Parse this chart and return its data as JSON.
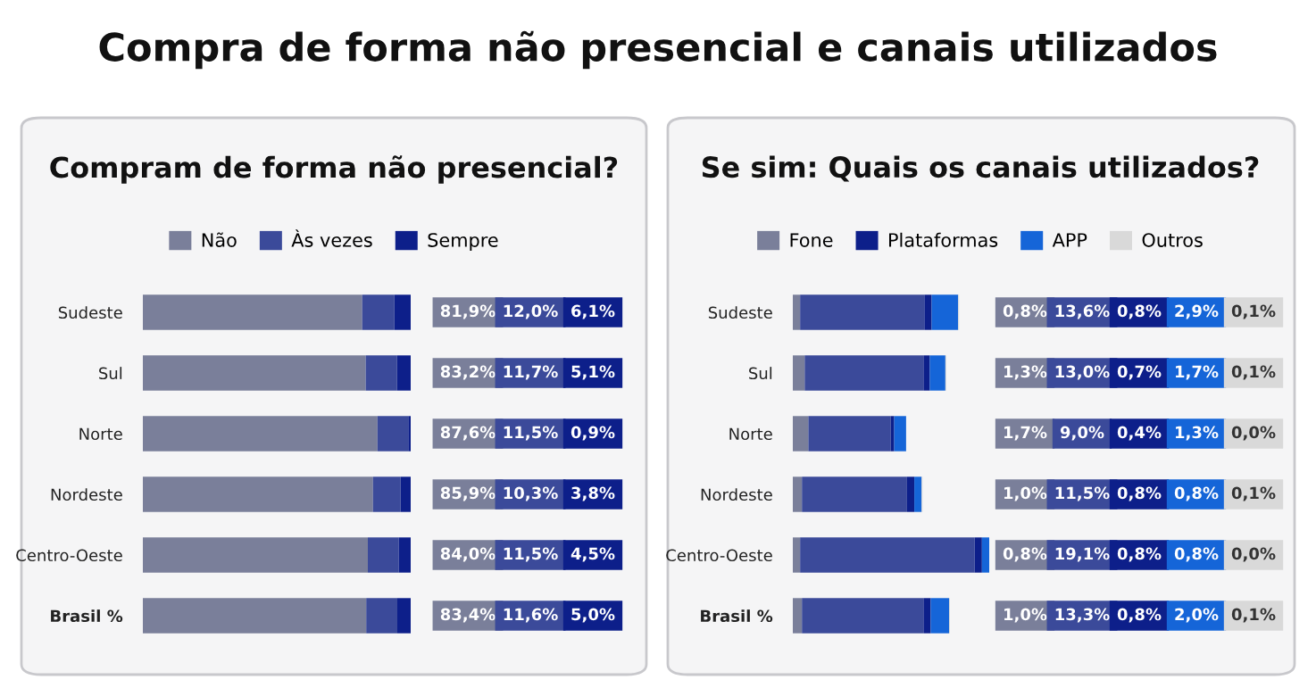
{
  "chart_data": [
    {
      "type": "bar",
      "orientation": "horizontal",
      "stacked": true,
      "title": "Compram de forma não presencial?",
      "annotations": [
        "Compra de forma não presencial e canais utilizados"
      ],
      "legend": "top",
      "tick_labels": "y",
      "categories": [
        "Sudeste",
        "Sul",
        "Norte",
        "Nordeste",
        "Centro-Oeste",
        "Brasil %"
      ],
      "series": [
        {
          "name": "Não",
          "color": "#7a7f9a",
          "values": [
            81.9,
            83.2,
            87.6,
            85.9,
            84.0,
            83.4
          ],
          "value_labels": [
            "81,9%",
            "83,2%",
            "87,6%",
            "85,9%",
            "84,0%",
            "83,4%"
          ]
        },
        {
          "name": "Às vezes",
          "color": "#3b4a9a",
          "values": [
            12.0,
            11.7,
            11.5,
            10.3,
            11.5,
            11.6
          ],
          "value_labels": [
            "12,0%",
            "11,7%",
            "11,5%",
            "10,3%",
            "11,5%",
            "11,6%"
          ]
        },
        {
          "name": "Sempre",
          "color": "#0d1f8a",
          "values": [
            6.1,
            5.1,
            0.9,
            3.8,
            4.5,
            5.0
          ],
          "value_labels": [
            "6,1%",
            "5,1%",
            "0,9%",
            "3,8%",
            "4,5%",
            "5,0%"
          ]
        }
      ]
    },
    {
      "type": "bar",
      "orientation": "horizontal",
      "stacked": true,
      "title": "Se sim: Quais os canais utilizados?",
      "legend": "top",
      "tick_labels": "y",
      "categories": [
        "Sudeste",
        "Sul",
        "Norte",
        "Nordeste",
        "Centro-Oeste",
        "Brasil %"
      ],
      "series": [
        {
          "name": "Fone",
          "color": "#7a7f9a",
          "values": [
            0.8,
            1.3,
            1.7,
            1.0,
            0.8,
            1.0
          ],
          "value_labels": [
            "0,8%",
            "1,3%",
            "1,7%",
            "1,0%",
            "0,8%",
            "1,0%"
          ]
        },
        {
          "color": "#3b4a9a",
          "values": [
            13.6,
            13.0,
            9.0,
            11.5,
            19.1,
            13.3
          ],
          "value_labels": [
            "13,6%",
            "13,0%",
            "9,0%",
            "11,5%",
            "19,1%",
            "13,3%"
          ]
        },
        {
          "name": "Plataformas",
          "color": "#0d1f8a",
          "values": [
            0.8,
            0.7,
            0.4,
            0.8,
            0.8,
            0.8
          ],
          "value_labels": [
            "0,8%",
            "0,7%",
            "0,4%",
            "0,8%",
            "0,8%",
            "0,8%"
          ]
        },
        {
          "name": "APP",
          "color": "#1565d8",
          "values": [
            2.9,
            1.7,
            1.3,
            0.8,
            0.8,
            2.0
          ],
          "value_labels": [
            "2,9%",
            "1,7%",
            "1,3%",
            "0,8%",
            "0,8%",
            "2,0%"
          ]
        },
        {
          "name": "Outros",
          "color": "#d9d9d9",
          "values": [
            0.1,
            0.1,
            0.0,
            0.1,
            0.0,
            0.1
          ],
          "value_labels": [
            "0,1%",
            "0,1%",
            "0,0%",
            "0,1%",
            "0,0%",
            "0,1%"
          ]
        }
      ]
    }
  ]
}
